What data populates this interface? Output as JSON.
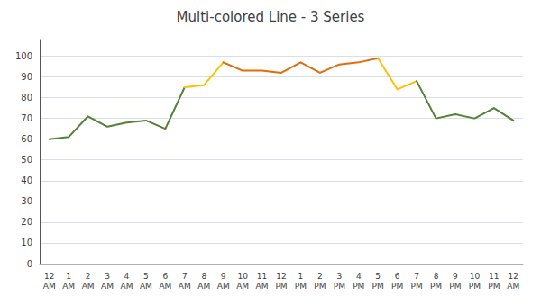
{
  "chart_data": {
    "type": "line",
    "title": "Multi-colored Line - 3 Series",
    "categories": [
      "12\nAM",
      "1\nAM",
      "2\nAM",
      "3\nAM",
      "4\nAM",
      "5\nAM",
      "6\nAM",
      "7\nAM",
      "8\nAM",
      "9\nAM",
      "10\nAM",
      "11\nAM",
      "12\nPM",
      "1\nPM",
      "2\nPM",
      "3\nPM",
      "4\nPM",
      "5\nPM",
      "6\nPM",
      "7\nPM",
      "8\nPM",
      "9\nPM",
      "10\nPM",
      "11\nPM",
      "12\nAM"
    ],
    "series": [
      {
        "color": "#538135",
        "values": [
          60,
          61,
          71,
          66,
          68,
          69,
          65,
          85,
          null,
          null,
          null,
          null,
          null,
          null,
          null,
          null,
          null,
          null,
          null,
          null,
          null,
          null,
          null,
          null,
          null
        ]
      },
      {
        "color": "#FFC000",
        "values": [
          null,
          null,
          null,
          null,
          null,
          null,
          null,
          85,
          86,
          97,
          null,
          null,
          null,
          null,
          null,
          null,
          null,
          null,
          null,
          null,
          null,
          null,
          null,
          null,
          null
        ]
      },
      {
        "color": "#E36C09",
        "values": [
          null,
          null,
          null,
          null,
          null,
          null,
          null,
          null,
          null,
          97,
          93,
          93,
          92,
          97,
          92,
          96,
          97,
          99,
          null,
          null,
          null,
          null,
          null,
          null,
          null
        ]
      },
      {
        "color": "#FFC000",
        "values": [
          null,
          null,
          null,
          null,
          null,
          null,
          null,
          null,
          null,
          null,
          null,
          null,
          null,
          null,
          null,
          null,
          null,
          99,
          84,
          88,
          null,
          null,
          null,
          null,
          null
        ]
      },
      {
        "color": "#538135",
        "values": [
          null,
          null,
          null,
          null,
          null,
          null,
          null,
          null,
          null,
          null,
          null,
          null,
          null,
          null,
          null,
          null,
          null,
          null,
          null,
          88,
          70,
          72,
          70,
          75,
          69
        ]
      }
    ],
    "ylim": [
      0,
      108
    ],
    "yticks": [
      0,
      10,
      20,
      30,
      40,
      50,
      60,
      70,
      80,
      90,
      100
    ],
    "grid": true
  }
}
